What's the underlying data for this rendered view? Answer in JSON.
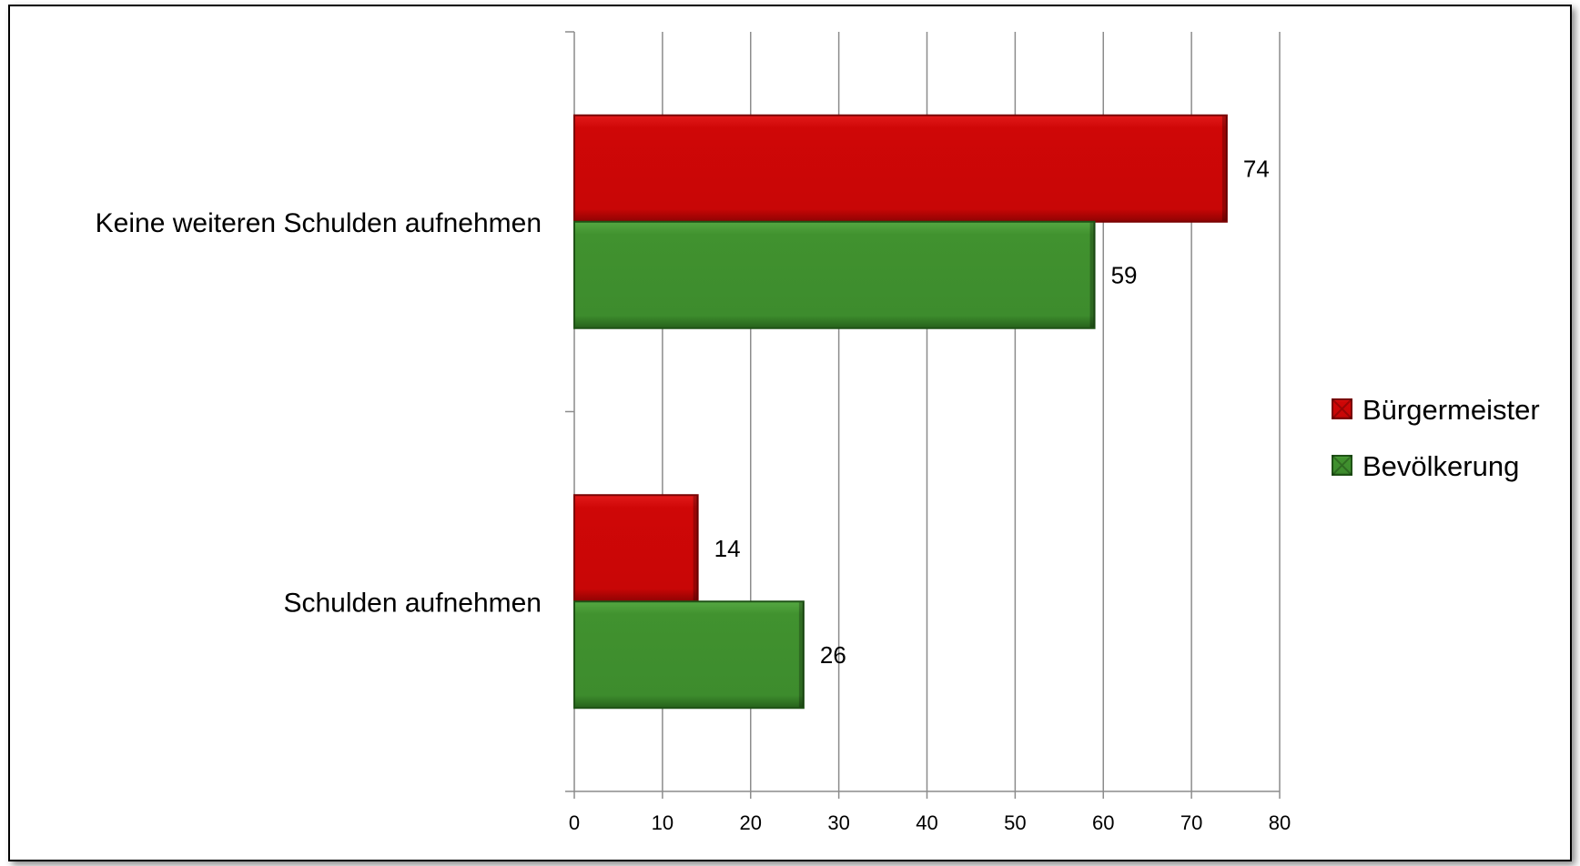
{
  "chart_data": {
    "type": "bar",
    "orientation": "horizontal",
    "categories": [
      "Keine weiteren Schulden aufnehmen",
      "Schulden aufnehmen"
    ],
    "series": [
      {
        "name": "Bürgermeister",
        "values": [
          74,
          14
        ],
        "color": "#cc0a0a"
      },
      {
        "name": "Bevölkerung",
        "values": [
          59,
          26
        ],
        "color": "#3e8f2e"
      }
    ],
    "xlim": [
      0,
      80
    ],
    "xticks": [
      0,
      10,
      20,
      30,
      40,
      50,
      60,
      70,
      80
    ],
    "grid": true,
    "legend_position": "right",
    "title": "",
    "xlabel": "",
    "ylabel": ""
  }
}
